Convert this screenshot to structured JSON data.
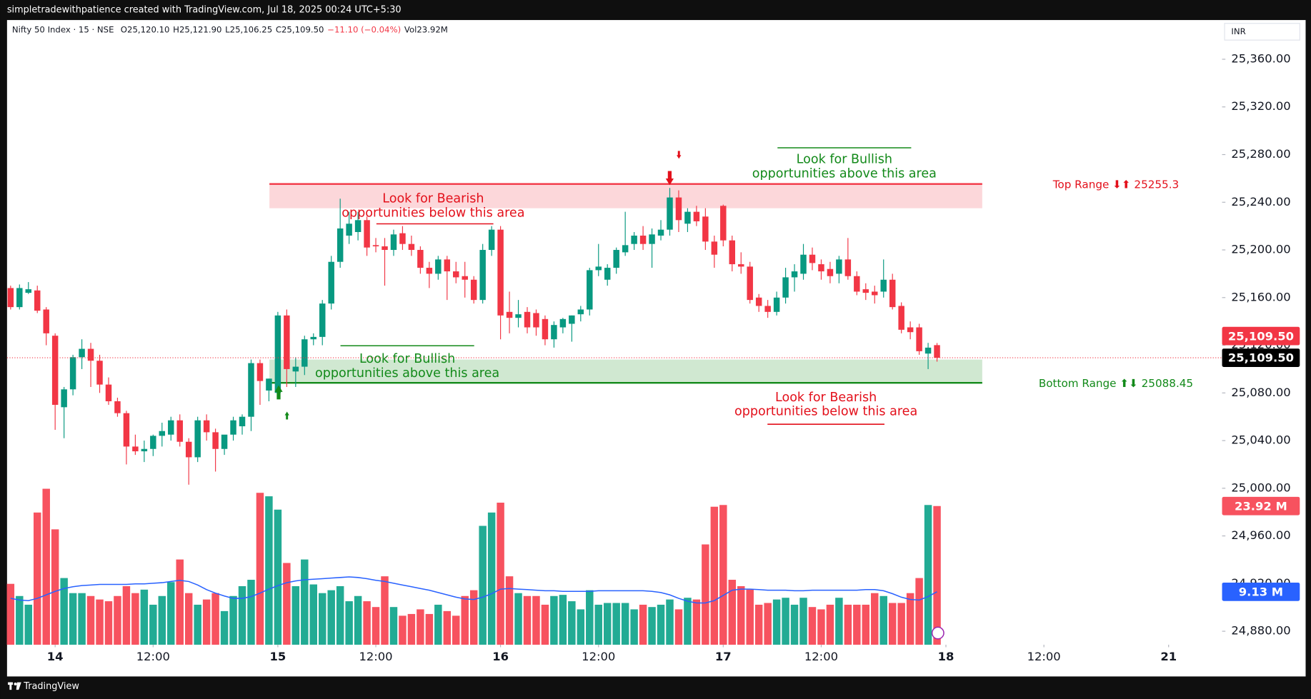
{
  "header": {
    "text": "simpletradewithpatience created with TradingView.com, Jul 18, 2025 00:24 UTC+5:30"
  },
  "footer": {
    "brand": "TradingView"
  },
  "chart_data": {
    "type": "candlestick",
    "legend": {
      "symbol": "Nifty 50 Index · 15 · NSE",
      "open": "O25,120.10",
      "high": "H25,121.90",
      "low": "L25,106.25",
      "close": "C25,109.50",
      "change": "−11.10 (−0.04%)",
      "volume": "Vol23.92M"
    },
    "currency": "INR",
    "xlim": [
      -0.4,
      136
    ],
    "xticks": [
      {
        "value": 5,
        "label": "14"
      },
      {
        "value": 16,
        "label": "12:00"
      },
      {
        "value": 30,
        "label": "15"
      },
      {
        "value": 41,
        "label": "12:00"
      },
      {
        "value": 55,
        "label": "16"
      },
      {
        "value": 66,
        "label": "12:00"
      },
      {
        "value": 80,
        "label": "17"
      },
      {
        "value": 91,
        "label": "12:00"
      },
      {
        "value": 105,
        "label": "18"
      },
      {
        "value": 116,
        "label": "12:00"
      },
      {
        "value": 130,
        "label": "21"
      }
    ],
    "ylim": [
      24868.7,
      25392.2
    ],
    "yticks": [
      {
        "value": 25360,
        "label": "25,360.00"
      },
      {
        "value": 25320,
        "label": "25,320.00"
      },
      {
        "value": 25280,
        "label": "25,280.00"
      },
      {
        "value": 25240,
        "label": "25,240.00"
      },
      {
        "value": 25200,
        "label": "25,200.00"
      },
      {
        "value": 25160,
        "label": "25,160.00"
      },
      {
        "value": 25120,
        "label": "25,120.00"
      },
      {
        "value": 25080,
        "label": "25,080.00"
      },
      {
        "value": 25040,
        "label": "25,040.00"
      },
      {
        "value": 25000,
        "label": "25,000.00"
      },
      {
        "value": 24960,
        "label": "24,960.00"
      },
      {
        "value": 24920,
        "label": "24,920.00"
      },
      {
        "value": 24880,
        "label": "24,880.00"
      }
    ],
    "open": [
      25168,
      25152,
      25164,
      25166,
      25150,
      25128,
      25068,
      25083,
      25110,
      25117,
      25107,
      25087,
      25073,
      25063,
      25035,
      25031,
      25033,
      25044,
      25045,
      25057,
      25039,
      25026,
      25057,
      25047,
      25033,
      25045,
      25052,
      25060,
      25105,
      25082,
      25080,
      25145,
      25098,
      25102,
      25125,
      25127,
      25155,
      25190,
      25212,
      25215,
      25225,
      25204,
      25203,
      25200,
      25214,
      25205,
      25200,
      25185,
      25180,
      25192,
      25182,
      25178,
      25175,
      25158,
      25200,
      25217,
      25148,
      25143,
      25148,
      25147,
      25142,
      25125,
      25135,
      25138,
      25146,
      25150,
      25183,
      25175,
      25185,
      25198,
      25205,
      25212,
      25205,
      25212,
      25217,
      25244,
      25222,
      25232,
      25228,
      25207,
      25237,
      25208,
      25188,
      25186,
      25160,
      25153,
      25148,
      25160,
      25177,
      25180,
      25196,
      25188,
      25184,
      25180,
      25192,
      25178,
      25167,
      25165,
      25165,
      25175,
      25153,
      25135,
      25135,
      25113,
      25120.1
    ],
    "high": [
      25170,
      25171,
      25173,
      25170,
      25152,
      25130,
      25085,
      25112,
      25125,
      25122,
      25112,
      25093,
      25076,
      25065,
      25045,
      25040,
      25045,
      25055,
      25060,
      25062,
      25042,
      25060,
      25062,
      25050,
      25043,
      25060,
      25062,
      25108,
      25108,
      25092,
      25148,
      25150,
      25110,
      25128,
      25130,
      25158,
      25195,
      25243,
      25232,
      25232,
      25228,
      25210,
      25210,
      25217,
      25220,
      25212,
      25203,
      25190,
      25195,
      25195,
      25190,
      25190,
      25178,
      25205,
      25220,
      25220,
      25165,
      25158,
      25152,
      25150,
      25145,
      25140,
      25143,
      25145,
      25153,
      25185,
      25205,
      25188,
      25202,
      25232,
      25215,
      25220,
      25218,
      25225,
      25252,
      25250,
      25235,
      25237,
      25235,
      25212,
      25238,
      25212,
      25198,
      25190,
      25163,
      25158,
      25165,
      25185,
      25188,
      25205,
      25202,
      25192,
      25190,
      25195,
      25210,
      25182,
      25172,
      25170,
      25192,
      25180,
      25156,
      25140,
      25138,
      25122,
      25121.9
    ],
    "low": [
      25150,
      25150,
      25163,
      25147,
      25120,
      25049,
      25042,
      25078,
      25100,
      25085,
      25080,
      25070,
      25060,
      25020,
      25028,
      25022,
      25027,
      25035,
      25040,
      25035,
      25003,
      25022,
      25040,
      25014,
      25028,
      25040,
      25045,
      25048,
      25070,
      25073,
      25075,
      25085,
      25085,
      25095,
      25120,
      25120,
      25150,
      25185,
      25205,
      25208,
      25195,
      25198,
      25170,
      25195,
      25200,
      25195,
      25180,
      25168,
      25175,
      25158,
      25172,
      25160,
      25155,
      25155,
      25195,
      25125,
      25130,
      25135,
      25130,
      25128,
      25120,
      25118,
      25130,
      25123,
      25140,
      25145,
      25178,
      25170,
      25180,
      25195,
      25200,
      25200,
      25185,
      25208,
      25212,
      25215,
      25215,
      25220,
      25200,
      25185,
      25203,
      25182,
      25180,
      25155,
      25148,
      25143,
      25145,
      25155,
      25165,
      25175,
      25183,
      25175,
      25172,
      25172,
      25175,
      25162,
      25158,
      25155,
      25160,
      25150,
      25130,
      25125,
      25112,
      25100,
      25106.25
    ],
    "close": [
      25152,
      25168,
      25167,
      25149,
      25130,
      25070,
      25083,
      25110,
      25117,
      25107,
      25087,
      25073,
      25063,
      25035,
      25031,
      25033,
      25044,
      25048,
      25057,
      25039,
      25026,
      25057,
      25047,
      25033,
      25045,
      25057,
      25060,
      25105,
      25090,
      25092,
      25145,
      25100,
      25102,
      25125,
      25127,
      25155,
      25190,
      25218,
      25222,
      25225,
      25202,
      25203,
      25200,
      25213,
      25205,
      25200,
      25185,
      25180,
      25192,
      25182,
      25177,
      25175,
      25158,
      25200,
      25217,
      25145,
      25143,
      25146,
      25135,
      25135,
      25125,
      25137,
      25142,
      25145,
      25150,
      25183,
      25186,
      25185,
      25200,
      25204,
      25212,
      25205,
      25213,
      25217,
      25244,
      25225,
      25232,
      25224,
      25207,
      25196,
      25208,
      25188,
      25186,
      25158,
      25153,
      25148,
      25160,
      25177,
      25182,
      25196,
      25189,
      25182,
      25178,
      25192,
      25178,
      25165,
      25164,
      25162,
      25175,
      25152,
      25133,
      25131,
      25115,
      25118,
      25109.5
    ],
    "volume": [
      10.5,
      8.4,
      6.9,
      22.8,
      26.9,
      19.9,
      11.5,
      8.9,
      8.9,
      8.4,
      7.8,
      7.5,
      8.4,
      10.1,
      8.9,
      9.5,
      6.9,
      8.4,
      10.8,
      14.7,
      8.9,
      6.9,
      7.8,
      8.9,
      5.8,
      8.4,
      10.1,
      11.2,
      26.2,
      25.6,
      23.3,
      14.1,
      10.1,
      14.7,
      10.4,
      8.9,
      9.4,
      10.1,
      7.5,
      8.4,
      7.5,
      6.5,
      11.8,
      6.5,
      5.0,
      5.3,
      6.1,
      5.3,
      6.9,
      5.8,
      5.0,
      8.4,
      9.4,
      20.5,
      22.8,
      24.5,
      11.8,
      8.9,
      8.4,
      8.4,
      6.9,
      8.4,
      8.6,
      7.5,
      6.1,
      9.4,
      6.9,
      7.2,
      7.2,
      7.2,
      6.1,
      6.9,
      6.5,
      6.9,
      7.8,
      6.1,
      8.1,
      7.8,
      17.3,
      23.8,
      24.1,
      11.2,
      10.1,
      9.5,
      6.9,
      7.2,
      7.8,
      8.1,
      6.9,
      8.1,
      6.5,
      6.1,
      6.9,
      8.1,
      6.9,
      6.9,
      6.9,
      8.9,
      8.4,
      7.2,
      7.2,
      8.9,
      11.5,
      24.1,
      23.92
    ],
    "volume_ma": [
      8.0,
      7.7,
      7.6,
      8.0,
      8.6,
      9.2,
      9.7,
      10.0,
      10.2,
      10.3,
      10.4,
      10.4,
      10.4,
      10.4,
      10.5,
      10.5,
      10.6,
      10.7,
      10.9,
      11.1,
      10.9,
      10.3,
      9.5,
      8.9,
      8.4,
      8.0,
      8.0,
      8.3,
      8.9,
      9.6,
      10.2,
      10.7,
      11.0,
      11.2,
      11.3,
      11.4,
      11.5,
      11.6,
      11.7,
      11.6,
      11.4,
      11.1,
      10.9,
      10.6,
      10.3,
      10.0,
      9.7,
      9.4,
      9.0,
      8.6,
      8.2,
      7.9,
      7.8,
      8.2,
      8.8,
      9.6,
      9.7,
      9.6,
      9.5,
      9.4,
      9.3,
      9.3,
      9.2,
      9.2,
      9.2,
      9.2,
      9.3,
      9.3,
      9.3,
      9.3,
      9.3,
      9.3,
      9.2,
      9.0,
      8.6,
      8.0,
      7.5,
      7.2,
      7.2,
      7.6,
      8.5,
      9.4,
      9.6,
      9.6,
      9.5,
      9.4,
      9.4,
      9.4,
      9.3,
      9.3,
      9.4,
      9.4,
      9.4,
      9.4,
      9.4,
      9.4,
      9.5,
      9.5,
      9.3,
      8.8,
      8.2,
      7.8,
      7.7,
      8.3,
      9.13
    ],
    "volume_lim": [
      0,
      107.6
    ],
    "colors": {
      "up": "#089981",
      "down": "#f23645",
      "volume_up": "#22ab94",
      "volume_down": "#f7525f",
      "ma": "#2962ff"
    },
    "last_price": {
      "value": 25109.5,
      "labels": [
        "25,109.50",
        "25,109.50"
      ]
    },
    "volume_label": "23.92 M",
    "ma_label": "9.13 M",
    "zones": [
      {
        "label": "Top Range ⬇⬆ 25255.3",
        "line": 25255.3,
        "band": 25235,
        "color": "#f23645",
        "text_color": "#e3101b"
      },
      {
        "label": "Bottom Range ⬆⬇ 25088.45",
        "line": 25088.45,
        "band": 25108,
        "color": "#138a1a",
        "text_color": "#138a1a"
      }
    ],
    "notes": [
      {
        "lines": [
          "Look for Bearish",
          "opportunities below this area"
        ],
        "color": "#e3101b"
      },
      {
        "lines": [
          "Look for Bullish",
          "opportunities above this area"
        ],
        "color": "#138a1a"
      },
      {
        "lines": [
          "Look for Bullish",
          "opportunities above this area"
        ],
        "color": "#138a1a"
      },
      {
        "lines": [
          "Look for Bearish",
          "opportunities below this area"
        ],
        "color": "#e3101b"
      }
    ]
  }
}
